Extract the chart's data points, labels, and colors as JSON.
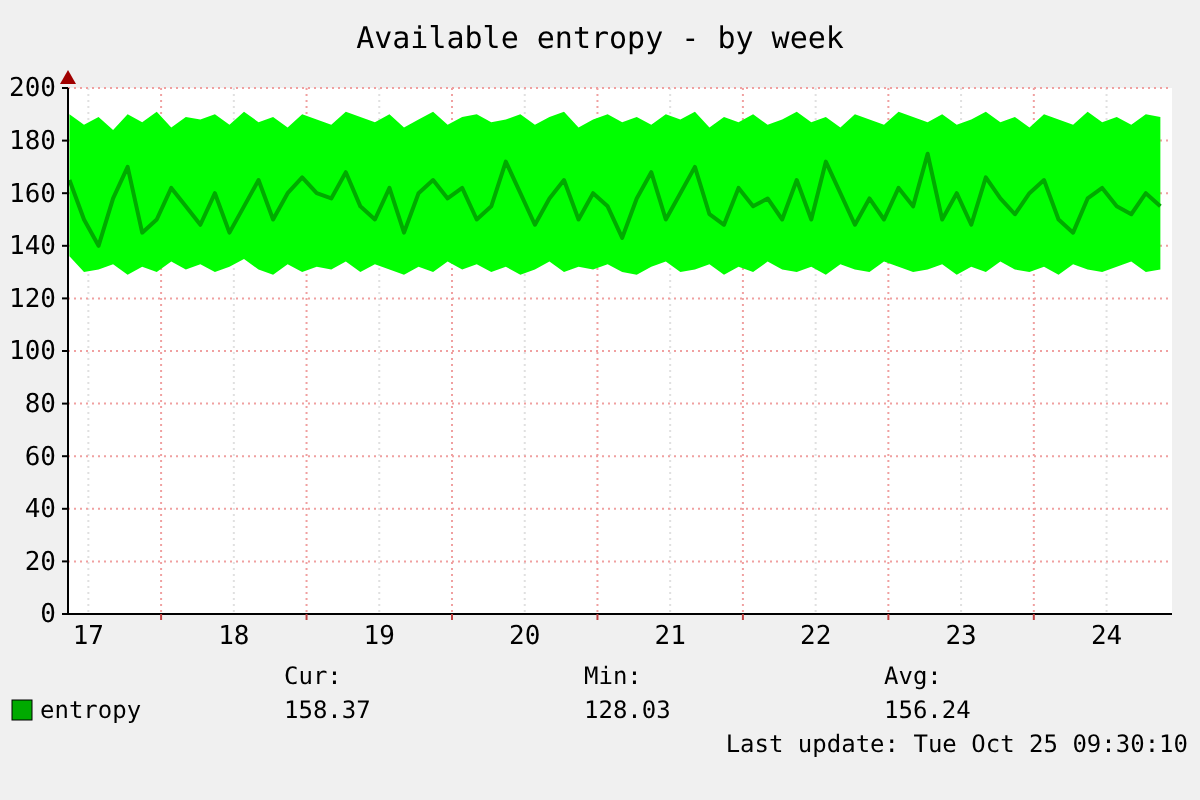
{
  "chart_data": {
    "type": "line",
    "title": "Available entropy - by week",
    "x": [
      16.87,
      16.97,
      17.07,
      17.17,
      17.27,
      17.37,
      17.47,
      17.57,
      17.67,
      17.77,
      17.87,
      17.97,
      18.07,
      18.17,
      18.27,
      18.37,
      18.47,
      18.57,
      18.67,
      18.77,
      18.87,
      18.97,
      19.07,
      19.17,
      19.27,
      19.37,
      19.47,
      19.57,
      19.67,
      19.77,
      19.87,
      19.97,
      20.07,
      20.17,
      20.27,
      20.37,
      20.47,
      20.57,
      20.67,
      20.77,
      20.87,
      20.97,
      21.07,
      21.17,
      21.27,
      21.37,
      21.47,
      21.57,
      21.67,
      21.77,
      21.87,
      21.97,
      22.07,
      22.17,
      22.27,
      22.37,
      22.47,
      22.57,
      22.67,
      22.77,
      22.87,
      22.97,
      23.07,
      23.17,
      23.27,
      23.37,
      23.47,
      23.57,
      23.67,
      23.77,
      23.87,
      23.97,
      24.07,
      24.17,
      24.27,
      24.37
    ],
    "series": [
      {
        "name": "entropy",
        "color": "#00aa00",
        "values": [
          165,
          150,
          140,
          158,
          170,
          145,
          150,
          162,
          155,
          148,
          160,
          145,
          155,
          165,
          150,
          160,
          166,
          160,
          158,
          168,
          155,
          150,
          162,
          145,
          160,
          165,
          158,
          162,
          150,
          155,
          172,
          160,
          148,
          158,
          165,
          150,
          160,
          155,
          143,
          158,
          168,
          150,
          160,
          170,
          152,
          148,
          162,
          155,
          158,
          150,
          165,
          150,
          172,
          160,
          148,
          158,
          150,
          162,
          155,
          175,
          150,
          160,
          148,
          166,
          158,
          152,
          160,
          165,
          150,
          145,
          158,
          162,
          155,
          152,
          160,
          155
        ],
        "lower": [
          136,
          130,
          131,
          133,
          129,
          132,
          130,
          134,
          131,
          133,
          130,
          132,
          135,
          131,
          129,
          133,
          130,
          132,
          131,
          134,
          130,
          133,
          131,
          129,
          132,
          130,
          134,
          131,
          133,
          130,
          132,
          129,
          131,
          134,
          130,
          132,
          131,
          133,
          130,
          129,
          132,
          134,
          130,
          131,
          133,
          129,
          132,
          130,
          134,
          131,
          130,
          132,
          129,
          133,
          131,
          130,
          134,
          132,
          130,
          131,
          133,
          129,
          132,
          130,
          134,
          131,
          130,
          132,
          129,
          133,
          131,
          130,
          132,
          134,
          130,
          131
        ],
        "upper": [
          190,
          186,
          189,
          184,
          190,
          187,
          191,
          185,
          189,
          188,
          190,
          186,
          191,
          187,
          189,
          185,
          190,
          188,
          186,
          191,
          189,
          187,
          190,
          185,
          188,
          191,
          186,
          189,
          190,
          187,
          188,
          190,
          186,
          189,
          191,
          185,
          188,
          190,
          187,
          189,
          186,
          190,
          188,
          191,
          185,
          189,
          187,
          190,
          186,
          188,
          191,
          187,
          189,
          185,
          190,
          188,
          186,
          191,
          189,
          187,
          190,
          186,
          188,
          191,
          187,
          189,
          185,
          190,
          188,
          186,
          191,
          187,
          189,
          186,
          190,
          189
        ]
      }
    ],
    "xlim": [
      16.86,
      24.45
    ],
    "xticks": [
      17,
      {
        "value": 17.5,
        "label": null
      },
      18,
      {
        "value": 18.5,
        "label": null
      },
      19,
      {
        "value": 19.5,
        "label": null
      },
      20,
      {
        "value": 20.5,
        "label": null
      },
      21,
      {
        "value": 21.5,
        "label": null
      },
      22,
      {
        "value": 22.5,
        "label": null
      },
      23,
      {
        "value": 23.5,
        "label": null
      },
      24
    ],
    "ylim": [
      0,
      200
    ],
    "yticks": [
      0,
      20,
      40,
      60,
      80,
      100,
      120,
      140,
      160,
      180,
      200
    ],
    "grid": true,
    "legend": "bottom left",
    "annotations": [
      "Cur:",
      "158.37",
      "Min:",
      "128.03",
      "Avg:",
      "156.24",
      "Last update: Tue Oct 25 09:30:10"
    ]
  }
}
